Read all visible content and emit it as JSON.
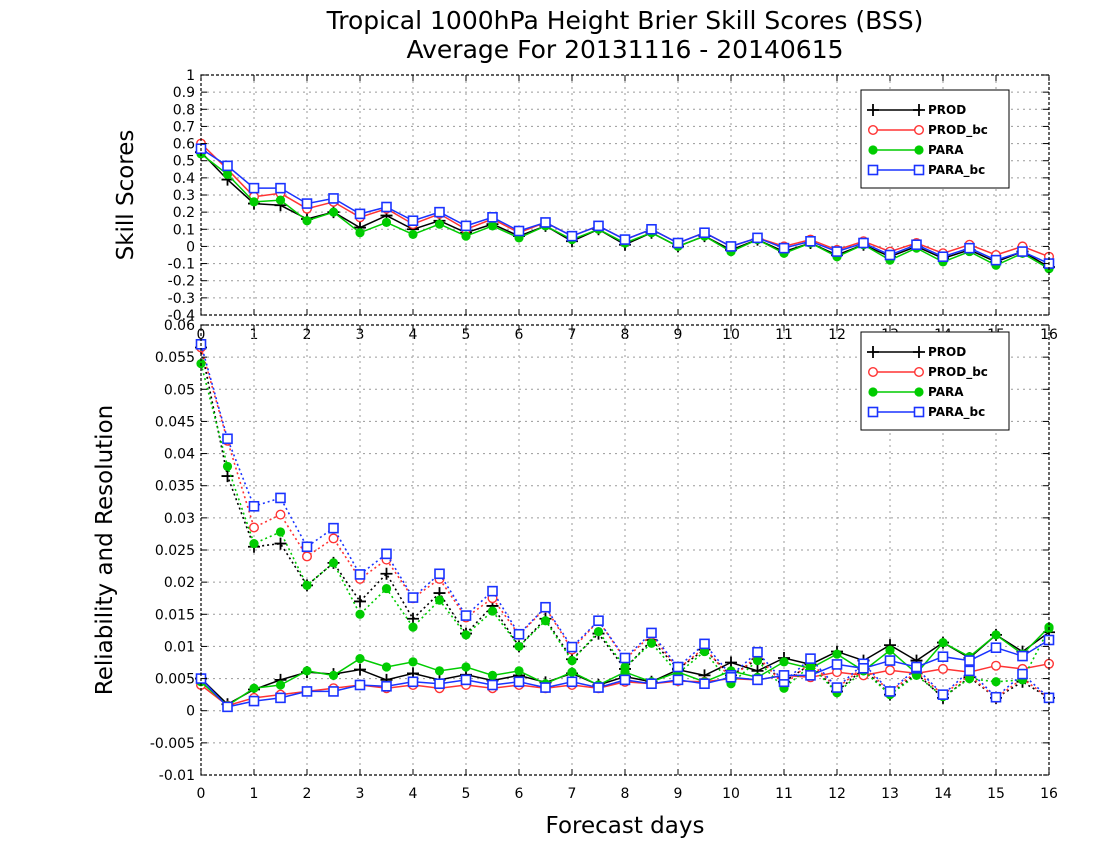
{
  "chart_data": [
    {
      "type": "line",
      "title": "Tropical 1000hPa Height Brier Skill Scores (BSS)",
      "subtitle": "Average For 20131116 - 20140615",
      "xlabel": "",
      "ylabel": "Skill Scores",
      "xlim": [
        0,
        16
      ],
      "ylim": [
        -0.4,
        1
      ],
      "xticks": [
        "0",
        "1",
        "2",
        "3",
        "4",
        "5",
        "6",
        "7",
        "8",
        "9",
        "10",
        "11",
        "12",
        "13",
        "14",
        "15",
        "16"
      ],
      "yticks": [
        "-0.4",
        "-0.3",
        "-0.2",
        "-0.1",
        "0",
        "0.1",
        "0.2",
        "0.3",
        "0.4",
        "0.5",
        "0.6",
        "0.7",
        "0.8",
        "0.9",
        "1"
      ],
      "grid": true,
      "legend_position": "top-right",
      "x": [
        0,
        0.5,
        1,
        1.5,
        2,
        2.5,
        3,
        3.5,
        4,
        4.5,
        5,
        5.5,
        6,
        6.5,
        7,
        7.5,
        8,
        8.5,
        9,
        9.5,
        10,
        10.5,
        11,
        11.5,
        12,
        12.5,
        13,
        13.5,
        14,
        14.5,
        15,
        15.5,
        16
      ],
      "series": [
        {
          "name": "PROD",
          "color": "#000000",
          "marker": "plus",
          "values": [
            0.55,
            0.39,
            0.25,
            0.24,
            0.16,
            0.2,
            0.11,
            0.18,
            0.1,
            0.15,
            0.08,
            0.13,
            0.06,
            0.12,
            0.03,
            0.1,
            0.01,
            0.08,
            0.0,
            0.06,
            -0.02,
            0.04,
            -0.03,
            0.02,
            -0.05,
            0.01,
            -0.06,
            0.0,
            -0.07,
            -0.02,
            -0.09,
            -0.03,
            -0.12
          ]
        },
        {
          "name": "PROD_bc",
          "color": "#ff3333",
          "marker": "circle",
          "values": [
            0.6,
            0.45,
            0.29,
            0.31,
            0.22,
            0.26,
            0.17,
            0.22,
            0.13,
            0.19,
            0.1,
            0.16,
            0.08,
            0.14,
            0.06,
            0.12,
            0.04,
            0.1,
            0.02,
            0.08,
            0.0,
            0.05,
            0.0,
            0.04,
            -0.02,
            0.03,
            -0.03,
            0.02,
            -0.04,
            0.01,
            -0.05,
            0.0,
            -0.06
          ]
        },
        {
          "name": "PARA",
          "color": "#00cc00",
          "marker": "dot",
          "values": [
            0.54,
            0.42,
            0.26,
            0.27,
            0.15,
            0.2,
            0.08,
            0.14,
            0.07,
            0.13,
            0.06,
            0.12,
            0.05,
            0.12,
            0.04,
            0.1,
            0.02,
            0.08,
            0.0,
            0.06,
            -0.03,
            0.04,
            -0.04,
            0.02,
            -0.06,
            0.01,
            -0.08,
            -0.01,
            -0.09,
            -0.03,
            -0.11,
            -0.04,
            -0.13
          ]
        },
        {
          "name": "PARA_bc",
          "color": "#1a33ff",
          "marker": "square",
          "values": [
            0.57,
            0.47,
            0.34,
            0.34,
            0.25,
            0.28,
            0.19,
            0.23,
            0.15,
            0.2,
            0.12,
            0.17,
            0.09,
            0.14,
            0.06,
            0.12,
            0.04,
            0.1,
            0.02,
            0.08,
            0.0,
            0.05,
            -0.01,
            0.03,
            -0.03,
            0.02,
            -0.05,
            0.01,
            -0.06,
            -0.01,
            -0.08,
            -0.03,
            -0.1
          ]
        }
      ]
    },
    {
      "type": "line",
      "title": "",
      "xlabel": "Forecast days",
      "ylabel": "Reliability and Resolution",
      "xlim": [
        0,
        16
      ],
      "ylim": [
        -0.01,
        0.06
      ],
      "xticks": [
        "0",
        "1",
        "2",
        "3",
        "4",
        "5",
        "6",
        "7",
        "8",
        "9",
        "10",
        "11",
        "12",
        "13",
        "14",
        "15",
        "16"
      ],
      "yticks": [
        "-0.01",
        "-0.005",
        "0",
        "0.005",
        "0.01",
        "0.015",
        "0.02",
        "0.025",
        "0.03",
        "0.035",
        "0.04",
        "0.045",
        "0.05",
        "0.055",
        "0.06"
      ],
      "grid": true,
      "legend_position": "top-right",
      "x": [
        0,
        0.5,
        1,
        1.5,
        2,
        2.5,
        3,
        3.5,
        4,
        4.5,
        5,
        5.5,
        6,
        6.5,
        7,
        7.5,
        8,
        8.5,
        9,
        9.5,
        10,
        10.5,
        11,
        11.5,
        12,
        12.5,
        13,
        13.5,
        14,
        14.5,
        15,
        15.5,
        16
      ],
      "series": [
        {
          "name": "PROD",
          "color": "#000000",
          "marker": "plus",
          "component": "resolution",
          "values": [
            0.0565,
            0.0365,
            0.0255,
            0.026,
            0.0195,
            0.023,
            0.017,
            0.0213,
            0.0143,
            0.0183,
            0.012,
            0.0163,
            0.01,
            0.0143,
            0.008,
            0.012,
            0.0065,
            0.011,
            0.0065,
            0.0095,
            0.0055,
            0.008,
            0.0045,
            0.0072,
            0.003,
            0.0065,
            0.0025,
            0.0058,
            0.002,
            0.0052,
            0.002,
            0.0045,
            0.002
          ]
        },
        {
          "name": "PROD",
          "color": "#000000",
          "marker": "plus",
          "component": "reliability",
          "values": [
            0.005,
            0.001,
            0.0033,
            0.0048,
            0.006,
            0.0057,
            0.0064,
            0.0048,
            0.0058,
            0.0048,
            0.0056,
            0.0047,
            0.0055,
            0.0044,
            0.0058,
            0.004,
            0.0053,
            0.0045,
            0.0064,
            0.0055,
            0.0075,
            0.0062,
            0.0082,
            0.0072,
            0.0092,
            0.0078,
            0.0102,
            0.0078,
            0.0106,
            0.0082,
            0.0118,
            0.0092,
            0.0122
          ]
        },
        {
          "name": "PROD_bc",
          "color": "#ff3333",
          "marker": "circle",
          "component": "resolution",
          "values": [
            0.0565,
            0.042,
            0.0285,
            0.0305,
            0.024,
            0.0268,
            0.0205,
            0.0235,
            0.0175,
            0.0205,
            0.0145,
            0.0175,
            0.0118,
            0.016,
            0.0095,
            0.014,
            0.008,
            0.0118,
            0.0065,
            0.0098,
            0.005,
            0.0085,
            0.004,
            0.0075,
            0.0035,
            0.0068,
            0.003,
            0.006,
            0.0025,
            0.0055,
            0.002,
            0.005,
            0.002
          ]
        },
        {
          "name": "PROD_bc",
          "color": "#ff3333",
          "marker": "circle",
          "component": "reliability",
          "values": [
            0.004,
            0.0008,
            0.002,
            0.0025,
            0.003,
            0.0035,
            0.004,
            0.0035,
            0.004,
            0.0035,
            0.004,
            0.0035,
            0.004,
            0.0035,
            0.004,
            0.0035,
            0.0045,
            0.0042,
            0.0046,
            0.0045,
            0.005,
            0.0048,
            0.0055,
            0.0052,
            0.006,
            0.0055,
            0.0063,
            0.0058,
            0.0065,
            0.006,
            0.007,
            0.0065,
            0.0073
          ]
        },
        {
          "name": "PARA",
          "color": "#00cc00",
          "marker": "dot",
          "component": "resolution",
          "values": [
            0.054,
            0.038,
            0.026,
            0.0278,
            0.0195,
            0.023,
            0.015,
            0.019,
            0.013,
            0.0172,
            0.0118,
            0.0155,
            0.01,
            0.014,
            0.0078,
            0.0123,
            0.0068,
            0.0105,
            0.0058,
            0.0092,
            0.0042,
            0.0078,
            0.0035,
            0.007,
            0.0028,
            0.0062,
            0.0025,
            0.0055,
            0.0022,
            0.005,
            0.0045,
            0.0048,
            0.0128
          ]
        },
        {
          "name": "PARA",
          "color": "#00cc00",
          "marker": "dot",
          "component": "reliability",
          "values": [
            0.0045,
            0.0008,
            0.0035,
            0.004,
            0.0062,
            0.0055,
            0.0081,
            0.0068,
            0.0076,
            0.0062,
            0.0068,
            0.0055,
            0.0062,
            0.0042,
            0.006,
            0.004,
            0.006,
            0.0045,
            0.006,
            0.0045,
            0.0062,
            0.0052,
            0.0076,
            0.0066,
            0.0088,
            0.0062,
            0.0094,
            0.0058,
            0.0106,
            0.0084,
            0.0118,
            0.0088,
            0.013
          ]
        },
        {
          "name": "PARA_bc",
          "color": "#1a33ff",
          "marker": "square",
          "component": "resolution",
          "values": [
            0.057,
            0.0423,
            0.0318,
            0.0331,
            0.0255,
            0.0284,
            0.0212,
            0.0244,
            0.0176,
            0.0213,
            0.0148,
            0.0186,
            0.0119,
            0.0161,
            0.0099,
            0.014,
            0.0082,
            0.0121,
            0.0068,
            0.0104,
            0.0055,
            0.0091,
            0.0045,
            0.0081,
            0.0036,
            0.0073,
            0.003,
            0.0066,
            0.0025,
            0.0062,
            0.0021,
            0.0057,
            0.002
          ]
        },
        {
          "name": "PARA_bc",
          "color": "#1a33ff",
          "marker": "square",
          "component": "reliability",
          "values": [
            0.005,
            0.0006,
            0.0015,
            0.002,
            0.003,
            0.003,
            0.004,
            0.0038,
            0.0045,
            0.0042,
            0.0048,
            0.004,
            0.0045,
            0.0036,
            0.0045,
            0.0036,
            0.0048,
            0.0042,
            0.0048,
            0.0042,
            0.0052,
            0.0048,
            0.0055,
            0.0055,
            0.0072,
            0.0066,
            0.0078,
            0.0068,
            0.0084,
            0.0078,
            0.0098,
            0.0085,
            0.011
          ]
        }
      ]
    }
  ]
}
